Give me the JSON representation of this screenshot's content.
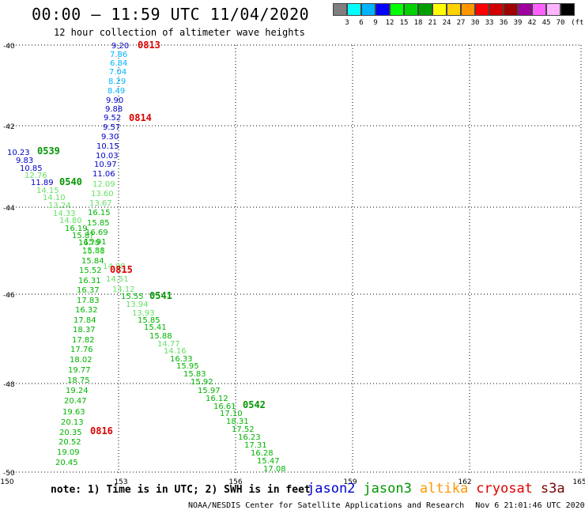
{
  "title": "00:00 – 11:59 UTC 11/04/2020",
  "subtitle": "12 hour collection of altimeter wave heights",
  "colorbar": {
    "colors": [
      "#7f7f7f",
      "#00ffff",
      "#00b4ff",
      "#0000ff",
      "#00ff00",
      "#00d200",
      "#00a000",
      "#ffff00",
      "#ffd200",
      "#ff9600",
      "#ff0000",
      "#d20000",
      "#a00000",
      "#a000a0",
      "#ff60ff",
      "#ffb4ff",
      "#000000"
    ],
    "labels": [
      "3",
      "6",
      "9",
      "12",
      "15",
      "18",
      "21",
      "24",
      "27",
      "30",
      "33",
      "36",
      "39",
      "42",
      "45",
      "70",
      "(ft)"
    ]
  },
  "axes": {
    "lon_ticks": [
      "150",
      "153",
      "156",
      "159",
      "162",
      "165"
    ],
    "lat_ticks": [
      "-40",
      "-42",
      "-44",
      "-46",
      "-48",
      "-50"
    ]
  },
  "satellite_colors": {
    "jason2": "#0000c8",
    "jason3": "#009600",
    "altika": "#ff9600",
    "cryosat": "#dc0000",
    "s3a": "#780000"
  },
  "swh_colors": {
    "cyan": "#00b4ff",
    "navy": "#0000c8",
    "light_green": "#66e066",
    "green": "#00b400",
    "dark_green": "#009600"
  },
  "pass_labels": [
    {
      "text": "0813",
      "sat": "cryosat"
    },
    {
      "text": "0814",
      "sat": "cryosat"
    },
    {
      "text": "0539",
      "sat": "jason3"
    },
    {
      "text": "0540",
      "sat": "jason3"
    },
    {
      "text": "0815",
      "sat": "cryosat"
    },
    {
      "text": "0541",
      "sat": "jason3"
    },
    {
      "text": "0542",
      "sat": "jason3"
    },
    {
      "text": "0816",
      "sat": "cryosat"
    }
  ],
  "swh_values": [
    {
      "v": "9.20",
      "c": "navy"
    },
    {
      "v": "7.86",
      "c": "cyan"
    },
    {
      "v": "6.84",
      "c": "cyan"
    },
    {
      "v": "7.04",
      "c": "cyan"
    },
    {
      "v": "8.29",
      "c": "cyan"
    },
    {
      "v": "8.49",
      "c": "cyan"
    },
    {
      "v": "9.90",
      "c": "navy"
    },
    {
      "v": "9.88",
      "c": "navy"
    },
    {
      "v": "9.52",
      "c": "navy"
    },
    {
      "v": "9.57",
      "c": "navy"
    },
    {
      "v": "9.30",
      "c": "navy"
    },
    {
      "v": "10.15",
      "c": "navy"
    },
    {
      "v": "10.03",
      "c": "navy"
    },
    {
      "v": "10.97",
      "c": "navy"
    },
    {
      "v": "11.06",
      "c": "navy"
    },
    {
      "v": "10.23",
      "c": "navy"
    },
    {
      "v": "9.83",
      "c": "navy"
    },
    {
      "v": "10.85",
      "c": "navy"
    },
    {
      "v": "12.76",
      "c": "light_green"
    },
    {
      "v": "11.89",
      "c": "navy"
    },
    {
      "v": "14.15",
      "c": "light_green"
    },
    {
      "v": "14.10",
      "c": "light_green"
    },
    {
      "v": "13.24",
      "c": "light_green"
    },
    {
      "v": "14.33",
      "c": "light_green"
    },
    {
      "v": "14.80",
      "c": "light_green"
    },
    {
      "v": "16.19",
      "c": "green"
    },
    {
      "v": "15.8?",
      "c": "green"
    },
    {
      "v": "16.?9",
      "c": "green"
    },
    {
      "v": "15.88",
      "c": "green"
    },
    {
      "v": "15.84",
      "c": "green"
    },
    {
      "v": "15.52",
      "c": "green"
    },
    {
      "v": "16.31",
      "c": "green"
    },
    {
      "v": "16.37",
      "c": "green"
    },
    {
      "v": "17.83",
      "c": "green"
    },
    {
      "v": "16.32",
      "c": "green"
    },
    {
      "v": "17.84",
      "c": "green"
    },
    {
      "v": "18.37",
      "c": "green"
    },
    {
      "v": "17.82",
      "c": "green"
    },
    {
      "v": "17.76",
      "c": "green"
    },
    {
      "v": "18.02",
      "c": "green"
    },
    {
      "v": "19.77",
      "c": "green"
    },
    {
      "v": "18.75",
      "c": "green"
    },
    {
      "v": "19.24",
      "c": "green"
    },
    {
      "v": "20.47",
      "c": "green"
    },
    {
      "v": "19.63",
      "c": "green"
    },
    {
      "v": "20.13",
      "c": "green"
    },
    {
      "v": "20.35",
      "c": "green"
    },
    {
      "v": "20.52",
      "c": "green"
    },
    {
      "v": "19.09",
      "c": "green"
    },
    {
      "v": "20.45",
      "c": "green"
    },
    {
      "v": "12.09",
      "c": "light_green"
    },
    {
      "v": "13.60",
      "c": "light_green"
    },
    {
      "v": "13.67",
      "c": "light_green"
    },
    {
      "v": "16.15",
      "c": "green"
    },
    {
      "v": "15.85",
      "c": "green"
    },
    {
      "v": "16.69",
      "c": "green"
    },
    {
      "v": "15.91",
      "c": "green"
    },
    {
      "v": "16.41",
      "c": "light_green"
    },
    {
      "v": "14.98",
      "c": "light_green"
    },
    {
      "v": "14.51",
      "c": "light_green"
    },
    {
      "v": "14.12",
      "c": "light_green"
    },
    {
      "v": "15.55",
      "c": "green"
    },
    {
      "v": "13.94",
      "c": "light_green"
    },
    {
      "v": "13.93",
      "c": "light_green"
    },
    {
      "v": "15.85",
      "c": "green"
    },
    {
      "v": "15.41",
      "c": "green"
    },
    {
      "v": "15.88",
      "c": "green"
    },
    {
      "v": "14.77",
      "c": "light_green"
    },
    {
      "v": "14.16",
      "c": "light_green"
    },
    {
      "v": "16.33",
      "c": "green"
    },
    {
      "v": "15.95",
      "c": "green"
    },
    {
      "v": "15.83",
      "c": "green"
    },
    {
      "v": "15.92",
      "c": "green"
    },
    {
      "v": "15.97",
      "c": "green"
    },
    {
      "v": "16.12",
      "c": "green"
    },
    {
      "v": "16.61",
      "c": "green"
    },
    {
      "v": "17.10",
      "c": "green"
    },
    {
      "v": "18.31",
      "c": "green"
    },
    {
      "v": "17.52",
      "c": "green"
    },
    {
      "v": "16.23",
      "c": "green"
    },
    {
      "v": "17.31",
      "c": "green"
    },
    {
      "v": "16.28",
      "c": "green"
    },
    {
      "v": "15.47",
      "c": "green"
    },
    {
      "v": "17.08",
      "c": "green"
    }
  ],
  "note": "note: 1) Time is in UTC; 2) SWH is in feet",
  "satellites": [
    {
      "name": "jason2",
      "key": "jason2"
    },
    {
      "name": "jason3",
      "key": "jason3"
    },
    {
      "name": "altika",
      "key": "altika"
    },
    {
      "name": "cryosat",
      "key": "cryosat"
    },
    {
      "name": "s3a",
      "key": "s3a"
    }
  ],
  "footer": {
    "credit": "NOAA/NESDIS Center for Satellite Applications and Research",
    "timestamp": "Nov  6 21:01:46 UTC 2020"
  }
}
